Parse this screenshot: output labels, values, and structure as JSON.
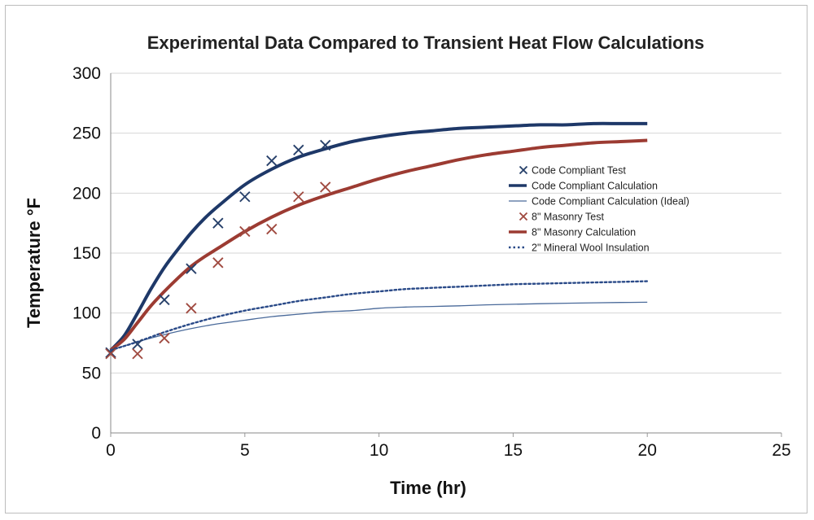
{
  "chart_data": {
    "type": "scatter",
    "title": "Experimental Data Compared to  Transient Heat Flow Calculations",
    "xlabel": "Time (hr)",
    "ylabel": "Temperature °F",
    "xlim": [
      0,
      25
    ],
    "ylim": [
      0,
      300
    ],
    "xticks": [
      0,
      5,
      10,
      15,
      20,
      25
    ],
    "yticks": [
      0,
      50,
      100,
      150,
      200,
      250,
      300
    ],
    "grid": "horizontal",
    "legend_position": "center-right",
    "series": [
      {
        "name": "Code Compliant Test",
        "kind": "markers",
        "marker": "x",
        "color": "#27406a",
        "x": [
          0,
          1,
          2,
          3,
          4,
          5,
          6,
          7,
          8
        ],
        "y": [
          67,
          74,
          111,
          137,
          175,
          197,
          227,
          236,
          240
        ]
      },
      {
        "name": "Code Compliant Calculation",
        "kind": "line",
        "style": "thick",
        "color": "#1e3868",
        "x": [
          0,
          0.5,
          1,
          1.5,
          2,
          2.5,
          3,
          3.5,
          4,
          5,
          6,
          7,
          8,
          9,
          10,
          11,
          12,
          13,
          14,
          15,
          16,
          17,
          18,
          19,
          20
        ],
        "y": [
          69,
          81,
          100,
          120,
          138,
          153,
          167,
          179,
          189,
          207,
          220,
          230,
          237,
          243,
          247,
          250,
          252,
          254,
          255,
          256,
          257,
          257,
          258,
          258,
          258
        ]
      },
      {
        "name": "Code Compliant Calculation (Ideal)",
        "kind": "line",
        "style": "thin",
        "color": "#4a6a9a",
        "x": [
          0,
          1,
          2,
          3,
          4,
          5,
          6,
          7,
          8,
          9,
          10,
          11,
          12,
          13,
          14,
          15,
          16,
          17,
          18,
          19,
          20
        ],
        "y": [
          69,
          76,
          82,
          87,
          91,
          94,
          97,
          99,
          101,
          102,
          104,
          105,
          105.5,
          106,
          106.8,
          107.3,
          107.8,
          108.2,
          108.5,
          108.8,
          109
        ]
      },
      {
        "name": "8\" Masonry Test",
        "kind": "markers",
        "marker": "x",
        "color": "#a04a40",
        "x": [
          0,
          1,
          2,
          3,
          4,
          5,
          6,
          7,
          8
        ],
        "y": [
          66,
          66,
          79,
          104,
          142,
          168,
          170,
          197,
          205
        ]
      },
      {
        "name": "8\" Masonry Calculation",
        "kind": "line",
        "style": "thick",
        "color": "#9c3b32",
        "x": [
          0,
          0.5,
          1,
          1.5,
          2,
          2.5,
          3,
          3.5,
          4,
          5,
          6,
          7,
          8,
          9,
          10,
          11,
          12,
          13,
          14,
          15,
          16,
          17,
          18,
          19,
          20
        ],
        "y": [
          69,
          78,
          92,
          106,
          118,
          129,
          139,
          147,
          154,
          168,
          180,
          190,
          198,
          205,
          212,
          218,
          223,
          228,
          232,
          235,
          238,
          240,
          242,
          243,
          244
        ]
      },
      {
        "name": "2\" Mineral Wool Insulation",
        "kind": "line",
        "style": "dotted",
        "color": "#2a4a88",
        "x": [
          0,
          1,
          2,
          3,
          4,
          5,
          6,
          7,
          8,
          9,
          10,
          11,
          12,
          13,
          14,
          15,
          16,
          17,
          18,
          19,
          20
        ],
        "y": [
          69,
          76,
          84,
          91,
          97,
          102,
          106,
          110,
          113,
          116,
          118,
          120,
          121,
          122,
          123,
          124,
          124.5,
          125,
          125.5,
          126,
          126.5
        ]
      }
    ]
  }
}
